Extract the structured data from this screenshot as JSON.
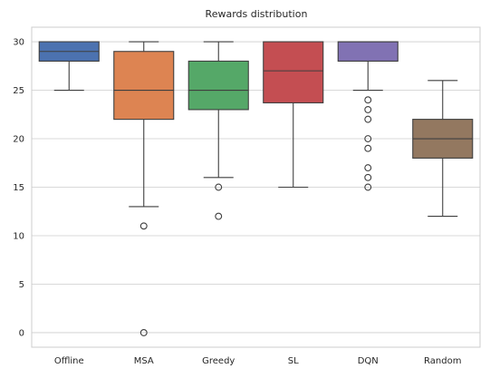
{
  "chart_data": {
    "type": "box",
    "title": "Rewards distribution",
    "xlabel": "",
    "ylabel": "",
    "ylim": [
      -1.5,
      31.5
    ],
    "yticks": [
      0,
      5,
      10,
      15,
      20,
      25,
      30
    ],
    "grid": "horizontal",
    "categories": [
      "Offline",
      "MSA",
      "Greedy",
      "SL",
      "DQN",
      "Random"
    ],
    "boxes": [
      {
        "name": "Offline",
        "whisker_low": 25,
        "q1": 28,
        "median": 29,
        "q3": 30,
        "whisker_high": 30,
        "outliers": [],
        "color": "#4c72b0"
      },
      {
        "name": "MSA",
        "whisker_low": 13,
        "q1": 22,
        "median": 25,
        "q3": 29,
        "whisker_high": 30,
        "outliers": [
          11,
          0
        ],
        "color": "#dd8452"
      },
      {
        "name": "Greedy",
        "whisker_low": 16,
        "q1": 23,
        "median": 25,
        "q3": 28,
        "whisker_high": 30,
        "outliers": [
          15,
          12
        ],
        "color": "#55a868"
      },
      {
        "name": "SL",
        "whisker_low": 15,
        "q1": 23.7,
        "median": 27,
        "q3": 30,
        "whisker_high": 30,
        "outliers": [],
        "color": "#c44e52"
      },
      {
        "name": "DQN",
        "whisker_low": 25,
        "q1": 28,
        "median": 30,
        "q3": 30,
        "whisker_high": 30,
        "outliers": [
          24,
          23,
          22,
          20,
          19,
          17,
          16,
          15
        ],
        "color": "#8172b3"
      },
      {
        "name": "Random",
        "whisker_low": 12,
        "q1": 18,
        "median": 20,
        "q3": 22,
        "whisker_high": 26,
        "outliers": [],
        "color": "#937860"
      }
    ]
  }
}
